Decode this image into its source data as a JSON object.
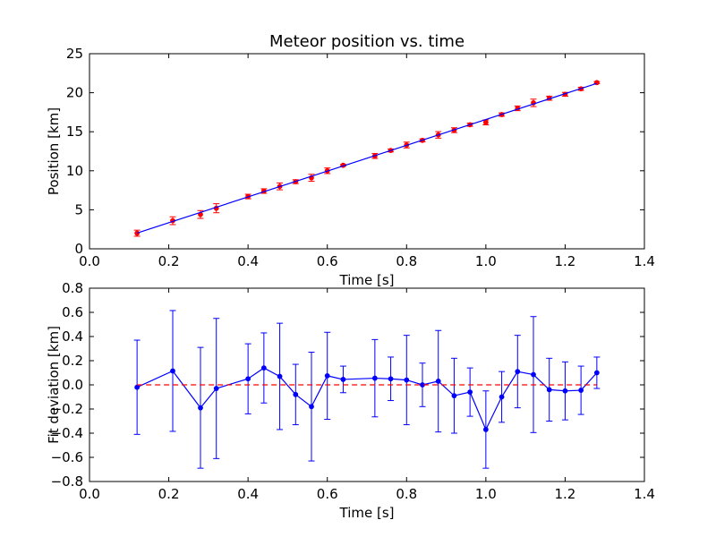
{
  "chart_data": [
    {
      "type": "scatter",
      "title": "Meteor position vs. time",
      "xlabel": "Time [s]",
      "ylabel": "Position [km]",
      "xlim": [
        0.0,
        1.4
      ],
      "ylim": [
        0,
        25
      ],
      "xticks": [
        "0.0",
        "0.2",
        "0.4",
        "0.6",
        "0.8",
        "1.0",
        "1.2",
        "1.4"
      ],
      "yticks": [
        "0",
        "5",
        "10",
        "15",
        "20",
        "25"
      ],
      "grid": false,
      "series": [
        {
          "kind": "points-with-errorbars",
          "color": "#ff0000",
          "errorbar_color": "#ff0000",
          "x": [
            0.12,
            0.21,
            0.28,
            0.32,
            0.4,
            0.44,
            0.48,
            0.52,
            0.56,
            0.6,
            0.64,
            0.72,
            0.76,
            0.8,
            0.84,
            0.88,
            0.92,
            0.96,
            1.0,
            1.04,
            1.08,
            1.12,
            1.16,
            1.2,
            1.24,
            1.28
          ],
          "y": [
            2.0,
            3.6,
            4.4,
            5.2,
            6.7,
            7.4,
            8.0,
            8.6,
            9.1,
            10.0,
            10.7,
            11.9,
            12.6,
            13.3,
            13.9,
            14.6,
            15.2,
            15.9,
            16.2,
            17.2,
            18.0,
            18.7,
            19.3,
            19.8,
            20.5,
            21.3
          ],
          "err": [
            0.39,
            0.5,
            0.5,
            0.58,
            0.29,
            0.29,
            0.44,
            0.25,
            0.45,
            0.36,
            0.11,
            0.32,
            0.18,
            0.37,
            0.18,
            0.42,
            0.31,
            0.2,
            0.32,
            0.21,
            0.3,
            0.48,
            0.26,
            0.24,
            0.2,
            0.13
          ]
        },
        {
          "kind": "fit-line",
          "color": "#0000ff",
          "x": [
            0.12,
            1.28
          ],
          "y": [
            2.02,
            21.2
          ]
        }
      ]
    },
    {
      "type": "line",
      "title": "",
      "xlabel": "Time [s]",
      "ylabel": "Fit deviation [km]",
      "xlim": [
        0.0,
        1.4
      ],
      "ylim": [
        -0.8,
        0.8
      ],
      "xticks": [
        "0.0",
        "0.2",
        "0.4",
        "0.6",
        "0.8",
        "1.0",
        "1.2",
        "1.4"
      ],
      "yticks": [
        "−0.8",
        "−0.6",
        "−0.4",
        "−0.2",
        "0.0",
        "0.2",
        "0.4",
        "0.6",
        "0.8"
      ],
      "grid": false,
      "series": [
        {
          "kind": "line-with-errorbars",
          "color": "#0000ff",
          "x": [
            0.12,
            0.21,
            0.28,
            0.32,
            0.4,
            0.44,
            0.48,
            0.52,
            0.56,
            0.6,
            0.64,
            0.72,
            0.76,
            0.8,
            0.84,
            0.88,
            0.92,
            0.96,
            1.0,
            1.04,
            1.08,
            1.12,
            1.16,
            1.2,
            1.24,
            1.28
          ],
          "y": [
            -0.02,
            0.115,
            -0.19,
            -0.03,
            0.05,
            0.14,
            0.07,
            -0.08,
            -0.18,
            0.075,
            0.045,
            0.055,
            0.05,
            0.04,
            0.0,
            0.03,
            -0.09,
            -0.06,
            -0.37,
            -0.1,
            0.11,
            0.085,
            -0.04,
            -0.05,
            -0.045,
            0.1
          ],
          "err": [
            0.39,
            0.5,
            0.5,
            0.58,
            0.29,
            0.29,
            0.44,
            0.25,
            0.45,
            0.36,
            0.11,
            0.32,
            0.18,
            0.37,
            0.18,
            0.42,
            0.31,
            0.2,
            0.32,
            0.21,
            0.3,
            0.48,
            0.26,
            0.24,
            0.2,
            0.13
          ]
        },
        {
          "kind": "zero-line",
          "color": "#ff0000",
          "dashed": true,
          "x": [
            0.12,
            1.28
          ],
          "y": [
            0.0,
            0.0
          ]
        }
      ]
    }
  ]
}
